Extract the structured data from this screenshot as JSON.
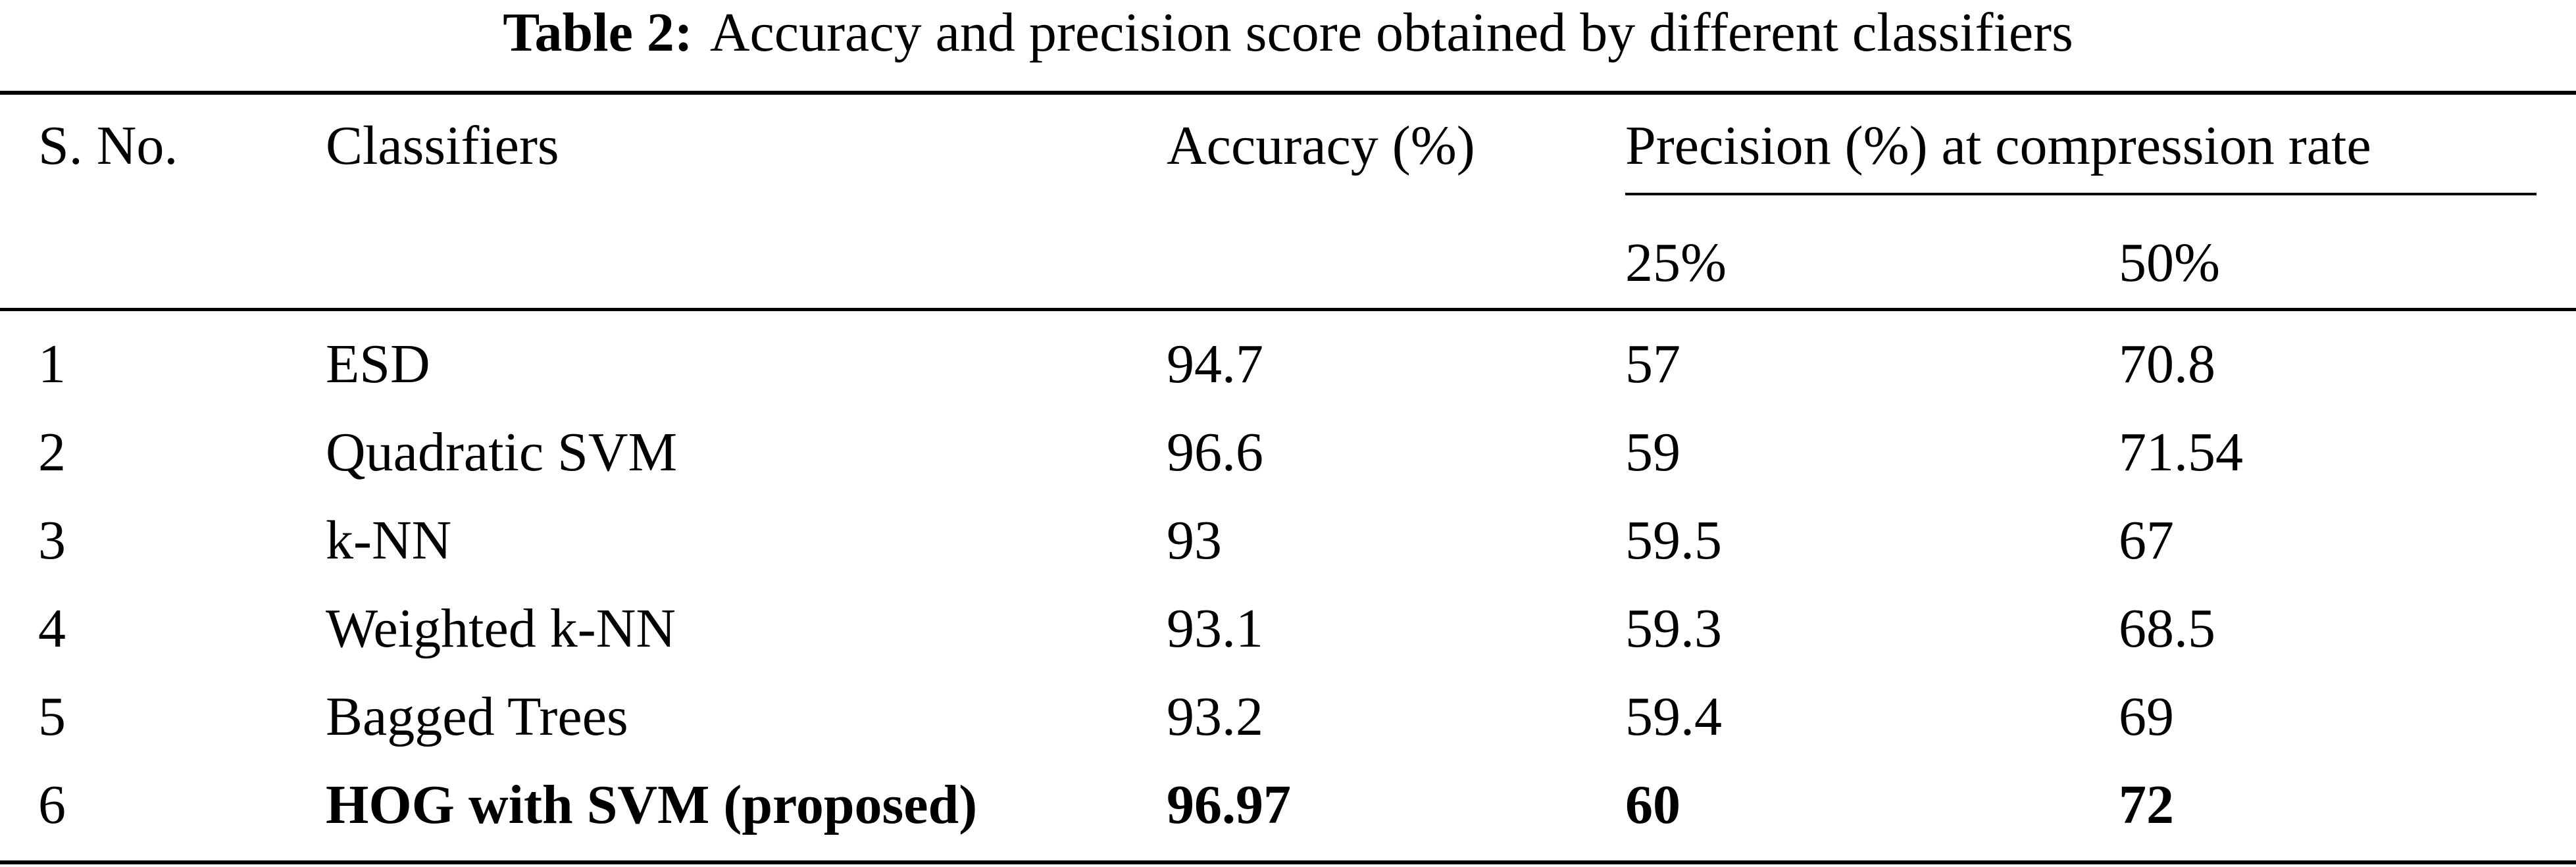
{
  "caption": {
    "label": "Table 2:",
    "text": "Accuracy and precision score obtained by different classifiers"
  },
  "headers": {
    "sno": "S. No.",
    "classifiers": "Classifiers",
    "accuracy": "Accuracy (%)",
    "precision_group": "Precision (%) at compression rate",
    "rate_25": "25%",
    "rate_50": "50%"
  },
  "rows": [
    {
      "sno": "1",
      "classifier": "ESD",
      "accuracy": "94.7",
      "p25": "57",
      "p50": "70.8"
    },
    {
      "sno": "2",
      "classifier": "Quadratic SVM",
      "accuracy": "96.6",
      "p25": "59",
      "p50": "71.54"
    },
    {
      "sno": "3",
      "classifier": "k-NN",
      "accuracy": "93",
      "p25": "59.5",
      "p50": "67"
    },
    {
      "sno": "4",
      "classifier": "Weighted k-NN",
      "accuracy": "93.1",
      "p25": "59.3",
      "p50": "68.5"
    },
    {
      "sno": "5",
      "classifier": "Bagged Trees",
      "accuracy": "93.2",
      "p25": "59.4",
      "p50": "69"
    },
    {
      "sno": "6",
      "classifier": "HOG with SVM (proposed)",
      "accuracy": "96.97",
      "p25": "60",
      "p50": "72"
    }
  ]
}
